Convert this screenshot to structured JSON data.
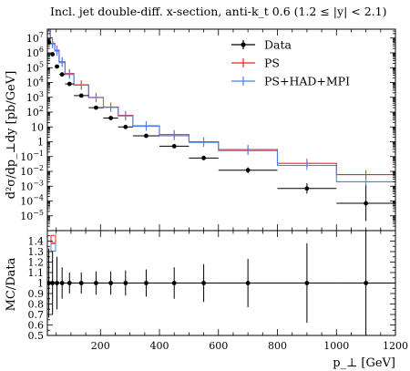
{
  "chart_data": {
    "type": "line",
    "title": "Incl. jet double-diff. x-section, anti-k_t 0.6 (1.2 ≤ |y| < 2.1)",
    "xlabel": "p_⊥ [GeV]",
    "ylabel_top": "d²σ/dp_⊥dy [pb/GeV]",
    "ylabel_bottom": "MC/Data",
    "xlim": [
      20,
      1200
    ],
    "ylim_top_log10": [
      -6,
      7.6
    ],
    "ylim_bottom": [
      0.5,
      1.5
    ],
    "x_ticks": [
      "200",
      "400",
      "600",
      "800",
      "1000",
      "1200"
    ],
    "top_y_ticks": [
      {
        "base": "10",
        "exp": "7"
      },
      {
        "base": "10",
        "exp": "6"
      },
      {
        "base": "10",
        "exp": "5"
      },
      {
        "base": "10",
        "exp": "4"
      },
      {
        "base": "10",
        "exp": "3"
      },
      {
        "base": "10",
        "exp": "2"
      },
      {
        "base": "10",
        "exp": ""
      },
      {
        "base": "1",
        "exp": ""
      },
      {
        "base": "10",
        "exp": "−1"
      },
      {
        "base": "10",
        "exp": "−2"
      },
      {
        "base": "10",
        "exp": "−3"
      },
      {
        "base": "10",
        "exp": "−4"
      },
      {
        "base": "10",
        "exp": "−5"
      }
    ],
    "bottom_y_ticks": [
      "1.4",
      "1.3",
      "1.2",
      "1.1",
      "1",
      "0.9",
      "0.8",
      "0.7",
      "0.6",
      "0.5"
    ],
    "legend": {
      "placement": "top-right",
      "entries": [
        "Data",
        "PS",
        "PS+HAD+MPI"
      ]
    },
    "colors": {
      "data": "#000000",
      "ps": "#e8281c",
      "ps_had_mpi": "#4a7ef5"
    },
    "bin_edges": [
      20,
      30,
      45,
      60,
      80,
      110,
      160,
      210,
      260,
      310,
      400,
      500,
      600,
      800,
      1000,
      1200
    ],
    "data": {
      "x": [
        25,
        37.5,
        52.5,
        70,
        95,
        135,
        185,
        235,
        285,
        355,
        450,
        550,
        700,
        900,
        1100
      ],
      "y": [
        5000000.0,
        800000.0,
        120000.0,
        35000.0,
        8000.0,
        1300.0,
        200,
        40,
        10,
        2.5,
        0.5,
        0.08,
        0.012,
        0.0007,
        7e-05
      ],
      "yerr_log10": [
        0.02,
        0.02,
        0.02,
        0.03,
        0.03,
        0.04,
        0.05,
        0.06,
        0.06,
        0.08,
        0.1,
        0.15,
        0.2,
        0.35,
        1.2
      ],
      "ratio_err": [
        0.33,
        0.3,
        0.25,
        0.15,
        0.1,
        0.1,
        0.11,
        0.11,
        0.12,
        0.13,
        0.15,
        0.18,
        0.23,
        0.38,
        0.6
      ]
    },
    "series": [
      {
        "name": "PS",
        "values": [
          70000000.0,
          4500000.0,
          1500000.0,
          250000.0,
          40000.0,
          7000.0,
          1000.0,
          220,
          60,
          12,
          3.0,
          1.0,
          0.3,
          0.035,
          0.006
        ]
      },
      {
        "name": "PS+HAD+MPI",
        "values": [
          65000000.0,
          4000000.0,
          1300000.0,
          220000.0,
          35000.0,
          6500.0,
          950,
          210,
          55,
          11,
          2.5,
          0.9,
          0.25,
          0.025,
          0.002
        ]
      }
    ]
  }
}
